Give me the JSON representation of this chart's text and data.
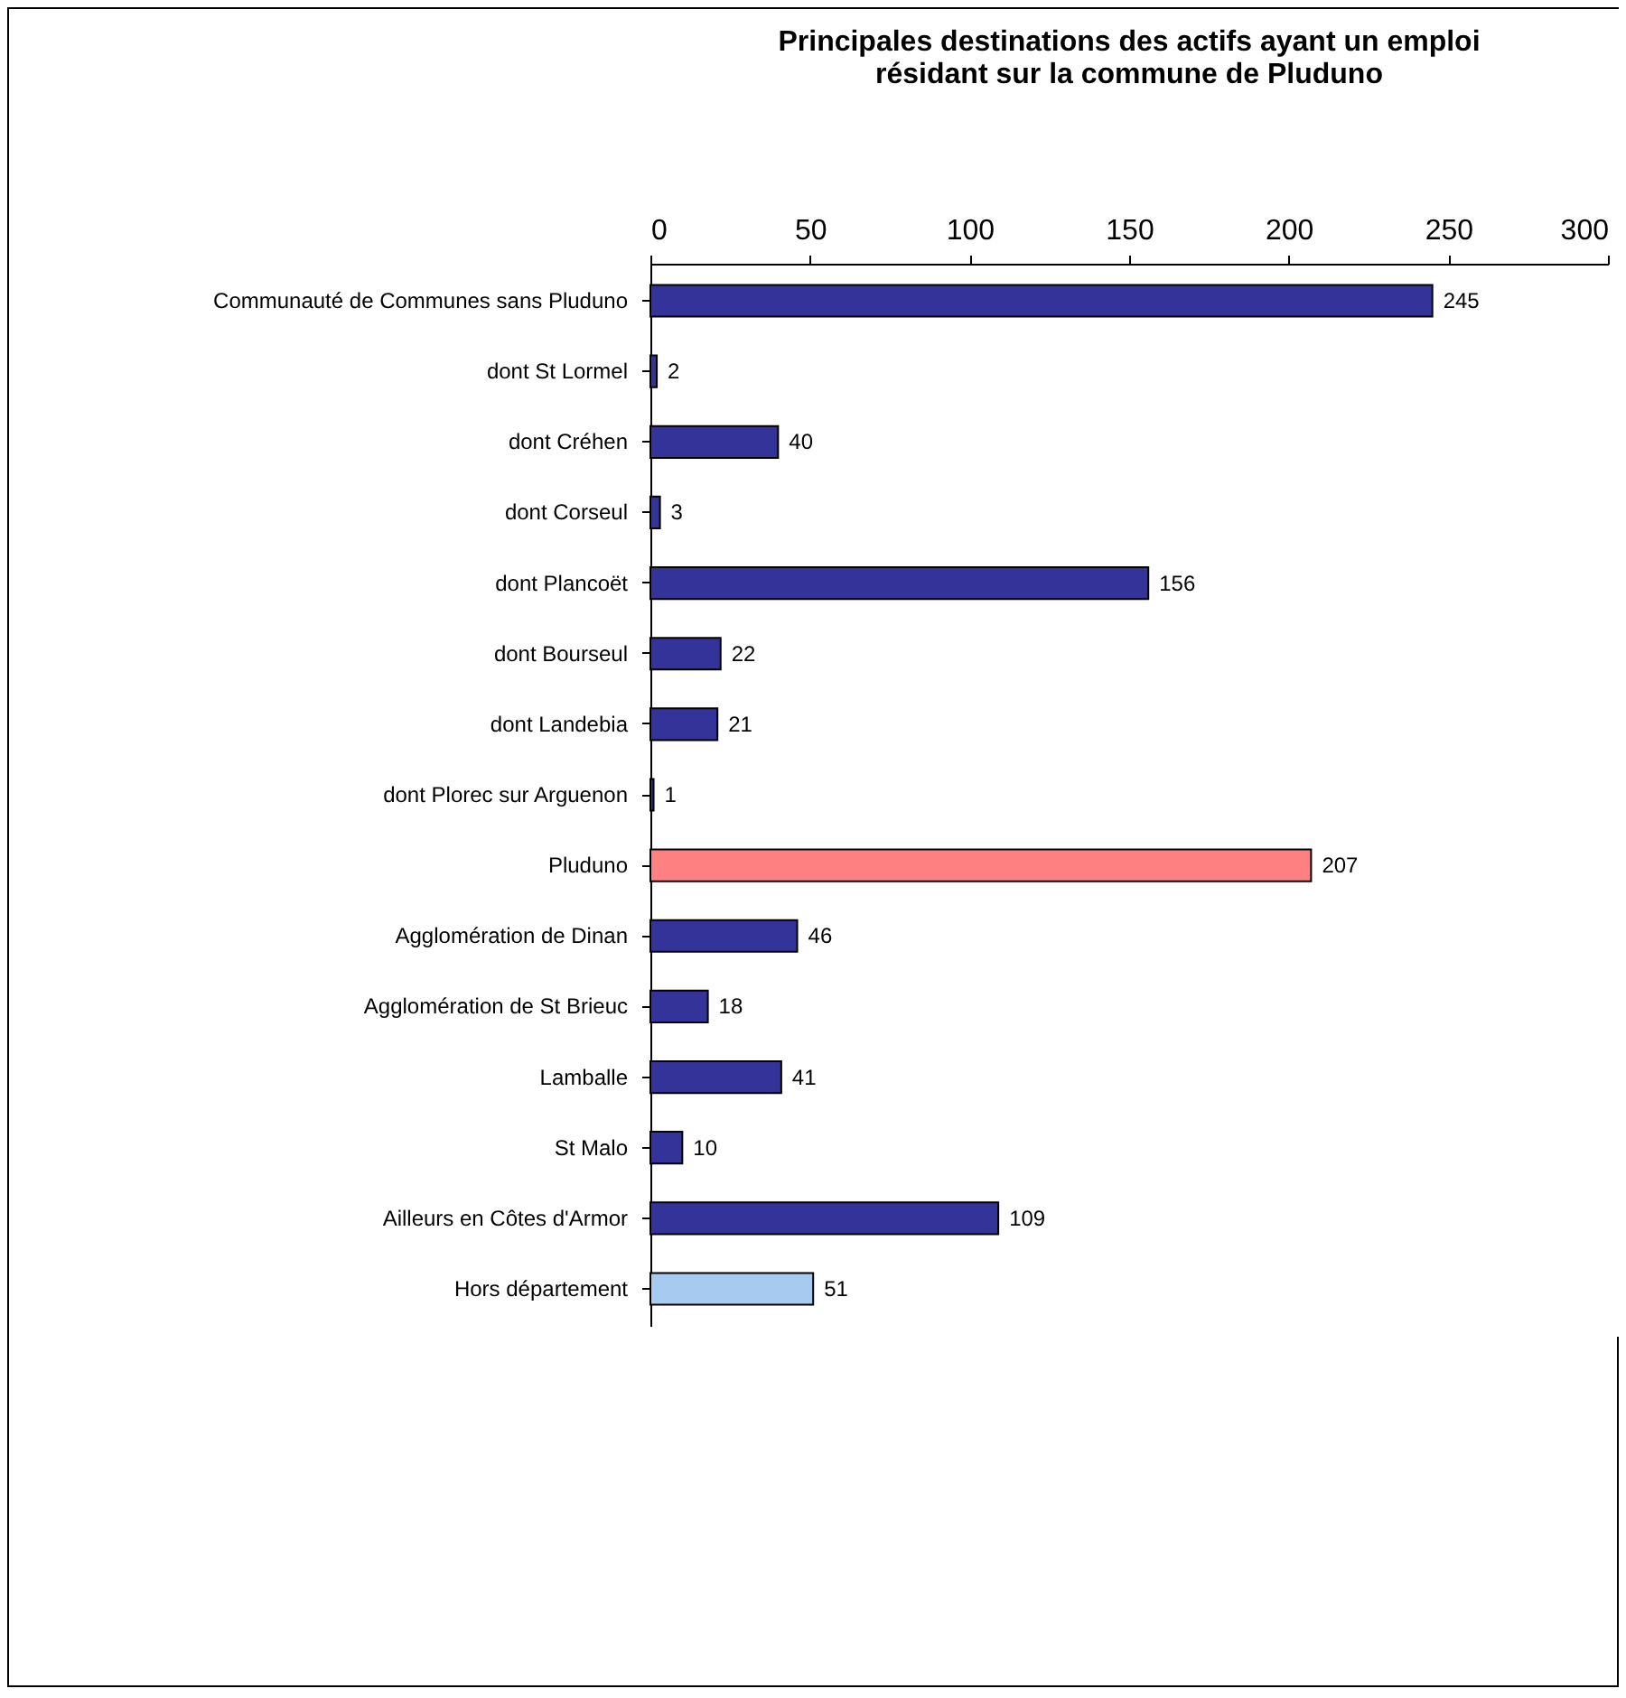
{
  "chart_data": {
    "type": "bar",
    "orientation": "horizontal",
    "title": "Principales destinations des actifs ayant un emploi résidant sur la commune de Pluduno",
    "categories": [
      "Communauté de Communes sans Pluduno",
      "dont St Lormel",
      "dont Créhen",
      "dont Corseul",
      "dont Plancoët",
      "dont Bourseul",
      "dont Landebia",
      "dont Plorec sur Arguenon",
      "Pluduno",
      "Agglomération de Dinan",
      "Agglomération de St Brieuc",
      "Lamballe",
      "St Malo",
      "Ailleurs en Côtes d'Armor",
      "Hors département"
    ],
    "values": [
      245,
      2,
      40,
      3,
      156,
      22,
      21,
      1,
      207,
      46,
      18,
      41,
      10,
      109,
      51
    ],
    "colors": [
      "#333399",
      "#333399",
      "#333399",
      "#333399",
      "#333399",
      "#333399",
      "#333399",
      "#333399",
      "#ff8080",
      "#333399",
      "#333399",
      "#333399",
      "#333399",
      "#333399",
      "#a6caf0"
    ],
    "xlim": [
      0,
      300
    ],
    "xticks": [
      0,
      50,
      100,
      150,
      200,
      250,
      300
    ],
    "data_labels": true,
    "grid": false
  }
}
